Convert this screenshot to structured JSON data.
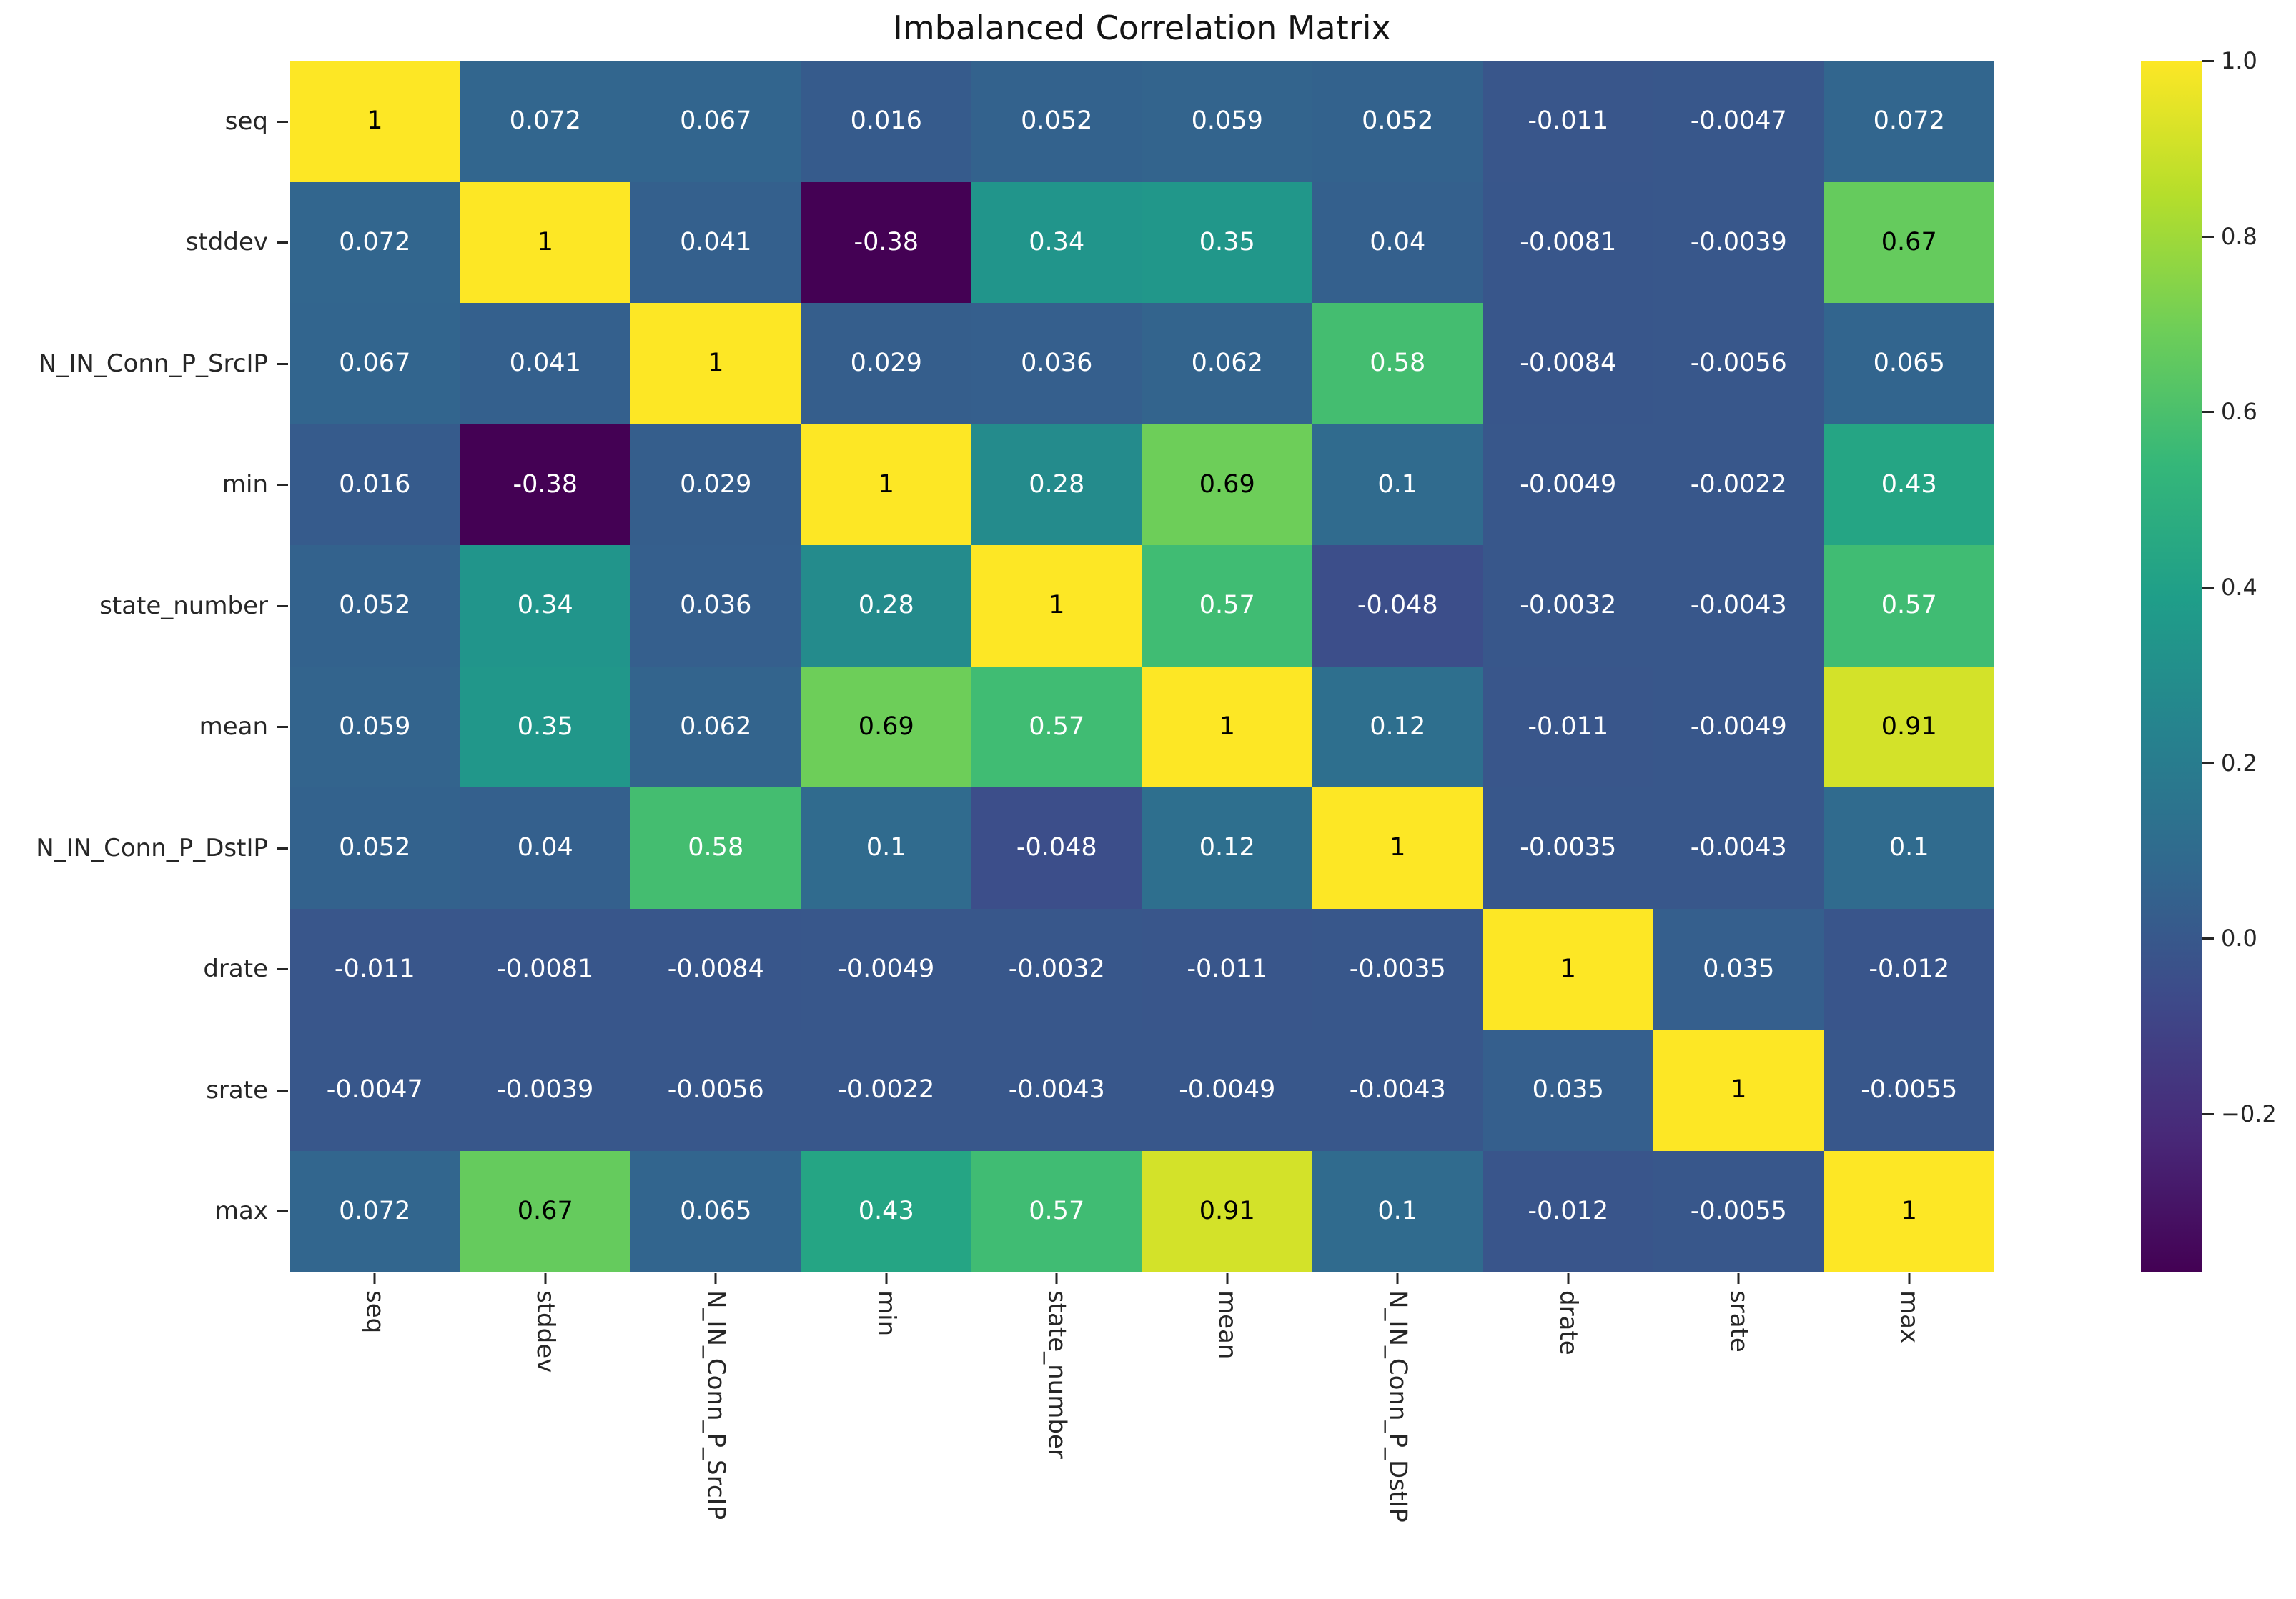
{
  "title": "Imbalanced Correlation Matrix",
  "chart_data": {
    "type": "heatmap",
    "title": "Imbalanced Correlation Matrix",
    "labels": [
      "seq",
      "stddev",
      "N_IN_Conn_P_SrcIP",
      "min",
      "state_number",
      "mean",
      "N_IN_Conn_P_DstIP",
      "drate",
      "srate",
      "max"
    ],
    "matrix": [
      [
        "1",
        "0.072",
        "0.067",
        "0.016",
        "0.052",
        "0.059",
        "0.052",
        "-0.011",
        "-0.0047",
        "0.072"
      ],
      [
        "0.072",
        "1",
        "0.041",
        "-0.38",
        "0.34",
        "0.35",
        "0.04",
        "-0.0081",
        "-0.0039",
        "0.67"
      ],
      [
        "0.067",
        "0.041",
        "1",
        "0.029",
        "0.036",
        "0.062",
        "0.58",
        "-0.0084",
        "-0.0056",
        "0.065"
      ],
      [
        "0.016",
        "-0.38",
        "0.029",
        "1",
        "0.28",
        "0.69",
        "0.1",
        "-0.0049",
        "-0.0022",
        "0.43"
      ],
      [
        "0.052",
        "0.34",
        "0.036",
        "0.28",
        "1",
        "0.57",
        "-0.048",
        "-0.0032",
        "-0.0043",
        "0.57"
      ],
      [
        "0.059",
        "0.35",
        "0.062",
        "0.69",
        "0.57",
        "1",
        "0.12",
        "-0.011",
        "-0.0049",
        "0.91"
      ],
      [
        "0.052",
        "0.04",
        "0.58",
        "0.1",
        "-0.048",
        "0.12",
        "1",
        "-0.0035",
        "-0.0043",
        "0.1"
      ],
      [
        "-0.011",
        "-0.0081",
        "-0.0084",
        "-0.0049",
        "-0.0032",
        "-0.011",
        "-0.0035",
        "1",
        "0.035",
        "-0.012"
      ],
      [
        "-0.0047",
        "-0.0039",
        "-0.0056",
        "-0.0022",
        "-0.0043",
        "-0.0049",
        "-0.0043",
        "0.035",
        "1",
        "-0.0055"
      ],
      [
        "0.072",
        "0.67",
        "0.065",
        "0.43",
        "0.57",
        "0.91",
        "0.1",
        "-0.012",
        "-0.0055",
        "1"
      ]
    ],
    "colormap": "viridis",
    "vmin": -0.38,
    "vmax": 1.0,
    "viridis_stops": [
      "#440154",
      "#482878",
      "#3e4989",
      "#31688e",
      "#26828e",
      "#1f9e89",
      "#35b779",
      "#6ece58",
      "#b5de2b",
      "#fde725"
    ],
    "colorbar_ticks": [
      {
        "value": 1.0,
        "label": "1.0"
      },
      {
        "value": 0.8,
        "label": "0.8"
      },
      {
        "value": 0.6,
        "label": "0.6"
      },
      {
        "value": 0.4,
        "label": "0.4"
      },
      {
        "value": 0.2,
        "label": "0.2"
      },
      {
        "value": 0.0,
        "label": "0.0"
      },
      {
        "value": -0.2,
        "label": "−0.2"
      }
    ],
    "legend_position": "right",
    "grid": false,
    "annotation_text_colors": {
      "light": "#ffffff",
      "dark": "#000000"
    },
    "axis_text_color": "#262626"
  }
}
